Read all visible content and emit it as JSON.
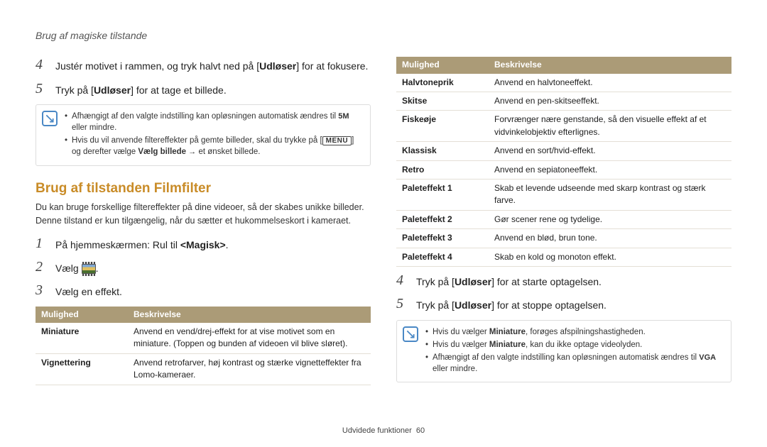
{
  "header": "Brug af magiske tilstande",
  "footer": {
    "label": "Udvidede funktioner",
    "page": "60"
  },
  "left": {
    "steps": [
      {
        "n": "4",
        "pre": "Justér motivet i rammen, og tryk halvt ned på [",
        "bold": "Udløser",
        "post": "] for at fokusere."
      },
      {
        "n": "5",
        "pre": "Tryk på [",
        "bold": "Udløser",
        "post": "] for at tage et billede."
      }
    ],
    "note": {
      "items": [
        "Afhængigt af den valgte indstilling kan opløsningen automatisk ændres til 5M eller mindre.",
        "Hvis du vil anvende filtereffekter på gemte billeder, skal du trykke på [MENU] og derefter vælge Vælg billede → et ønsket billede."
      ],
      "i1_a": "Afhængigt af den valgte indstilling kan opløsningen automatisk ændres til ",
      "i1_b": " eller mindre.",
      "i2_a": "Hvis du vil anvende filtereffekter på gemte billeder, skal du trykke på [",
      "i2_b": "] og derefter vælge ",
      "i2_bold": "Vælg billede",
      "i2_c": " et ønsket billede."
    },
    "section_title": "Brug af tilstanden Filmfilter",
    "section_desc": "Du kan bruge forskellige filtereffekter på dine videoer, så der skabes unikke billeder. Denne tilstand er kun tilgængelig, når du sætter et hukommelseskort i kameraet.",
    "steps2": [
      {
        "n": "1",
        "pre": "På hjemmeskærmen: Rul til ",
        "bold": "<Magisk>",
        "post": "."
      },
      {
        "n": "2",
        "pre": "Vælg ",
        "icon": true,
        "post": "."
      },
      {
        "n": "3",
        "pre": "Vælg en effekt.",
        "bold": "",
        "post": ""
      }
    ],
    "table": {
      "headers": [
        "Mulighed",
        "Beskrivelse"
      ],
      "rows": [
        [
          "Miniature",
          "Anvend en vend/drej-effekt for at vise motivet som en miniature. (Toppen og bunden af videoen vil blive sløret)."
        ],
        [
          "Vignettering",
          "Anvend retrofarver, høj kontrast og stærke vignetteffekter fra Lomo-kameraer."
        ]
      ]
    }
  },
  "right": {
    "table": {
      "headers": [
        "Mulighed",
        "Beskrivelse"
      ],
      "rows": [
        [
          "Halvtoneprik",
          "Anvend en halvtoneeffekt."
        ],
        [
          "Skitse",
          "Anvend en pen-skitseeffekt."
        ],
        [
          "Fiskeøje",
          "Forvrænger nære genstande, så den visuelle effekt af et vidvinkelobjektiv efterlignes."
        ],
        [
          "Klassisk",
          "Anvend en sort/hvid-effekt."
        ],
        [
          "Retro",
          "Anvend en sepiatoneeffekt."
        ],
        [
          "Paleteffekt 1",
          "Skab et levende udseende med skarp kontrast og stærk farve."
        ],
        [
          "Paleteffekt 2",
          "Gør scener rene og tydelige."
        ],
        [
          "Paleteffekt 3",
          "Anvend en blød, brun tone."
        ],
        [
          "Paleteffekt 4",
          "Skab en kold og monoton effekt."
        ]
      ]
    },
    "steps": [
      {
        "n": "4",
        "pre": "Tryk på [",
        "bold": "Udløser",
        "post": "] for at starte optagelsen."
      },
      {
        "n": "5",
        "pre": "Tryk på [",
        "bold": "Udløser",
        "post": "] for at stoppe optagelsen."
      }
    ],
    "note": {
      "i1_a": "Hvis du vælger ",
      "i1_bold": "Miniature",
      "i1_b": ", forøges afspilningshastigheden.",
      "i2_a": "Hvis du vælger ",
      "i2_bold": "Miniature",
      "i2_b": ", kan du ikke optage videolyden.",
      "i3_a": "Afhængigt af den valgte indstilling kan opløsningen automatisk ændres til ",
      "i3_b": "VGA",
      "i3_c": " eller mindre."
    }
  },
  "labels": {
    "menu": "MENU",
    "fivem": "5M"
  },
  "colors": {
    "accent": "#c98c28",
    "table_header_bg": "#ab9b77",
    "note_icon": "#4a88c5"
  }
}
